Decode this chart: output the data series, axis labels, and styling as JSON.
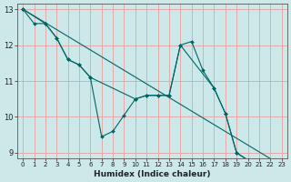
{
  "title": "",
  "xlabel": "Humidex (Indice chaleur)",
  "background_color": "#cce8e8",
  "plot_bg_color": "#cce8e8",
  "line_color": "#006666",
  "grid_color": "#e8a0a0",
  "xlim": [
    -0.5,
    23.5
  ],
  "ylim": [
    8.85,
    13.15
  ],
  "yticks": [
    9,
    10,
    11,
    12,
    13
  ],
  "xticks": [
    0,
    1,
    2,
    3,
    4,
    5,
    6,
    7,
    8,
    9,
    10,
    11,
    12,
    13,
    14,
    15,
    16,
    17,
    18,
    19,
    20,
    21,
    22,
    23
  ],
  "lines": [
    {
      "x": [
        0,
        1,
        2,
        3,
        4,
        5,
        6,
        7,
        8,
        9,
        10,
        11,
        12,
        13,
        14,
        15,
        16,
        17,
        18,
        19,
        20,
        21,
        22,
        23
      ],
      "y": [
        13.0,
        12.6,
        12.6,
        12.2,
        11.6,
        11.45,
        11.1,
        9.45,
        9.6,
        10.05,
        10.5,
        10.6,
        10.6,
        10.6,
        12.0,
        12.1,
        11.3,
        10.8,
        10.1,
        9.0,
        8.8,
        8.65,
        8.6,
        8.65
      ],
      "has_markers": true
    },
    {
      "x": [
        0,
        2,
        3,
        4,
        5,
        6,
        10,
        11,
        12,
        13,
        14,
        17,
        18,
        19,
        20,
        21,
        22,
        23
      ],
      "y": [
        13.0,
        12.6,
        12.2,
        11.6,
        11.45,
        11.1,
        10.5,
        10.6,
        10.6,
        10.6,
        12.0,
        10.8,
        10.1,
        9.0,
        8.8,
        8.65,
        8.6,
        8.65
      ],
      "has_markers": true
    },
    {
      "x": [
        0,
        23
      ],
      "y": [
        13.0,
        8.65
      ],
      "has_markers": false
    }
  ]
}
